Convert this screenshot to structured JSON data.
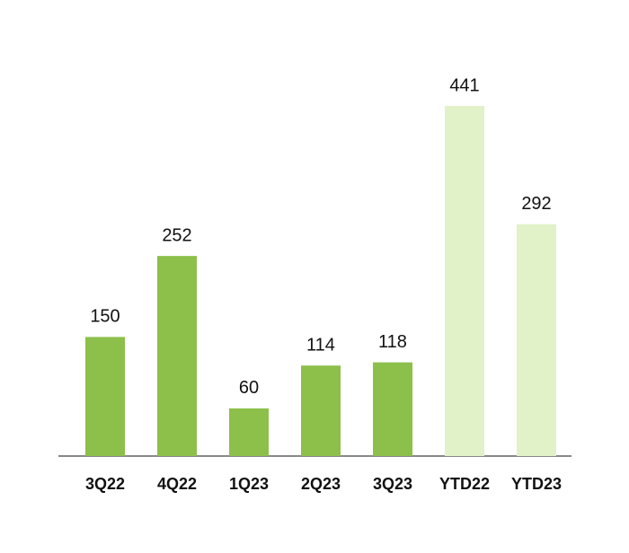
{
  "chart_data": {
    "type": "bar",
    "categories": [
      "3Q22",
      "4Q22",
      "1Q23",
      "2Q23",
      "3Q23",
      "YTD22",
      "YTD23"
    ],
    "values": [
      150,
      252,
      60,
      114,
      118,
      441,
      292
    ],
    "colors": [
      "#8cc04b",
      "#8cc04b",
      "#8cc04b",
      "#8cc04b",
      "#8cc04b",
      "#e1f2c8",
      "#e1f2c8"
    ]
  }
}
